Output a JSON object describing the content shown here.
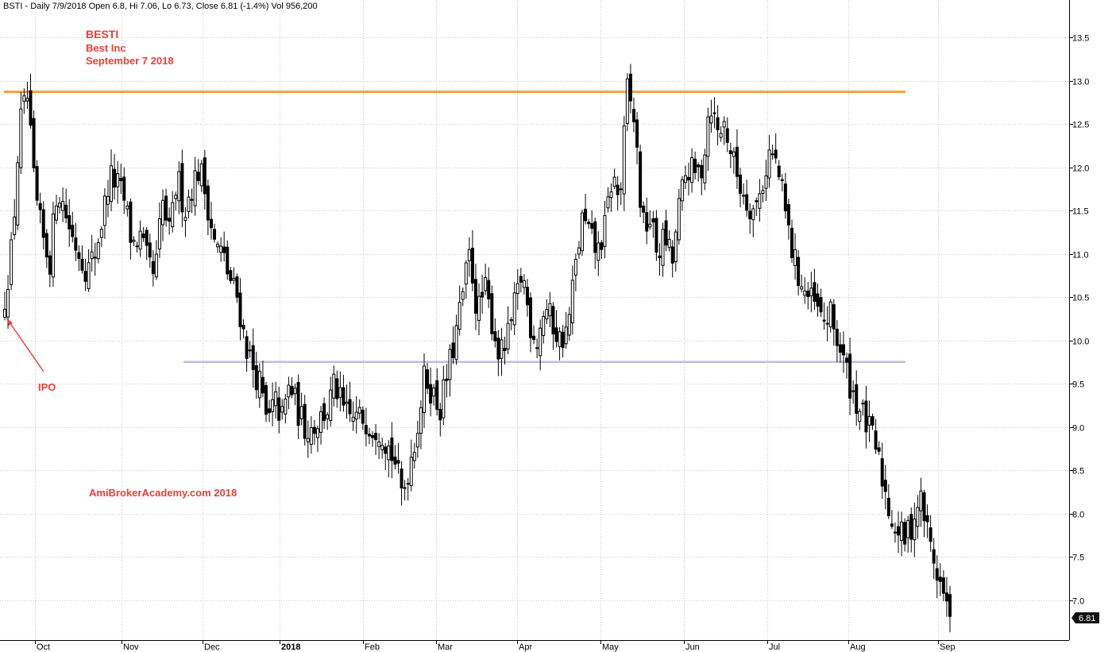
{
  "header": {
    "info": "BSTI - Daily 7/9/2018 Open 6.8, Hi 7.06, Lo 6.73, Close 6.81 (-1.4%) Vol 956,200"
  },
  "annotations": {
    "ticker": "BESTI",
    "company": "Best Inc",
    "date": "September 7 2018",
    "ipo": "IPO",
    "watermark": "AmiBrokerAcademy.com  2018"
  },
  "last_price_label": "6.81",
  "colors": {
    "annotation_red": "#e8403a",
    "resistance_line": "#f7a035",
    "support_line": "#c8b8dc",
    "last_price_badge": "#111111"
  },
  "chart_data": {
    "type": "candlestick",
    "y_range": [
      6.6,
      13.8
    ],
    "y_ticks": [
      "7.0",
      "7.5",
      "8.0",
      "8.5",
      "9.0",
      "9.5",
      "10.0",
      "10.5",
      "11.0",
      "11.5",
      "12.0",
      "12.5",
      "13.0",
      "13.5"
    ],
    "x_months": [
      {
        "label": "Oct",
        "bold": false
      },
      {
        "label": "Nov",
        "bold": false
      },
      {
        "label": "Dec",
        "bold": false
      },
      {
        "label": "2018",
        "bold": true
      },
      {
        "label": "Feb",
        "bold": false
      },
      {
        "label": "Mar",
        "bold": false
      },
      {
        "label": "Apr",
        "bold": false
      },
      {
        "label": "May",
        "bold": false
      },
      {
        "label": "Jun",
        "bold": false
      },
      {
        "label": "Jul",
        "bold": false
      },
      {
        "label": "Aug",
        "bold": false
      },
      {
        "label": "Sep",
        "bold": false
      }
    ],
    "horizontal_lines": [
      {
        "level": 12.87,
        "color": "#f7a035",
        "start": "IPO",
        "end": "Aug"
      },
      {
        "level": 9.75,
        "color": "#c8b8dc",
        "start": "Nov",
        "end": "Aug"
      }
    ],
    "series_close": [
      10.5,
      11.1,
      12.5,
      12.8,
      11.7,
      11.2,
      10.9,
      11.8,
      11.5,
      11.2,
      11.0,
      10.8,
      11.0,
      11.4,
      11.9,
      11.8,
      11.6,
      11.1,
      11.2,
      10.9,
      10.7,
      11.6,
      11.2,
      11.9,
      11.5,
      11.8,
      12.0,
      11.6,
      11.1,
      11.0,
      10.7,
      10.5,
      10.0,
      9.7,
      9.5,
      9.0,
      9.3,
      9.1,
      9.5,
      9.2,
      9.0,
      9.0,
      9.1,
      9.2,
      9.5,
      9.2,
      9.1,
      9.1,
      9.1,
      9.0,
      9.0,
      8.8,
      8.6,
      8.2,
      8.6,
      9.0,
      9.6,
      9.4,
      9.2,
      9.6,
      10.0,
      10.5,
      11.0,
      10.3,
      10.6,
      10.2,
      9.8,
      10.0,
      10.4,
      10.8,
      10.2,
      10.0,
      10.4,
      10.2,
      10.0,
      10.1,
      10.8,
      11.4,
      11.2,
      11.0,
      11.3,
      11.9,
      11.6,
      12.9,
      12.5,
      11.3,
      11.4,
      11.0,
      11.2,
      10.9,
      11.6,
      12.0,
      11.9,
      12.0,
      12.8,
      12.4,
      12.5,
      12.1,
      11.8,
      11.6,
      11.5,
      11.8,
      12.2,
      12.0,
      11.5,
      11.0,
      10.7,
      10.5,
      10.4,
      10.2,
      10.3,
      10.0,
      9.7,
      9.4,
      9.2,
      9.0,
      8.8,
      8.4,
      8.0,
      7.8,
      7.7,
      7.9,
      8.2,
      7.8,
      7.4,
      7.1,
      6.8
    ]
  }
}
